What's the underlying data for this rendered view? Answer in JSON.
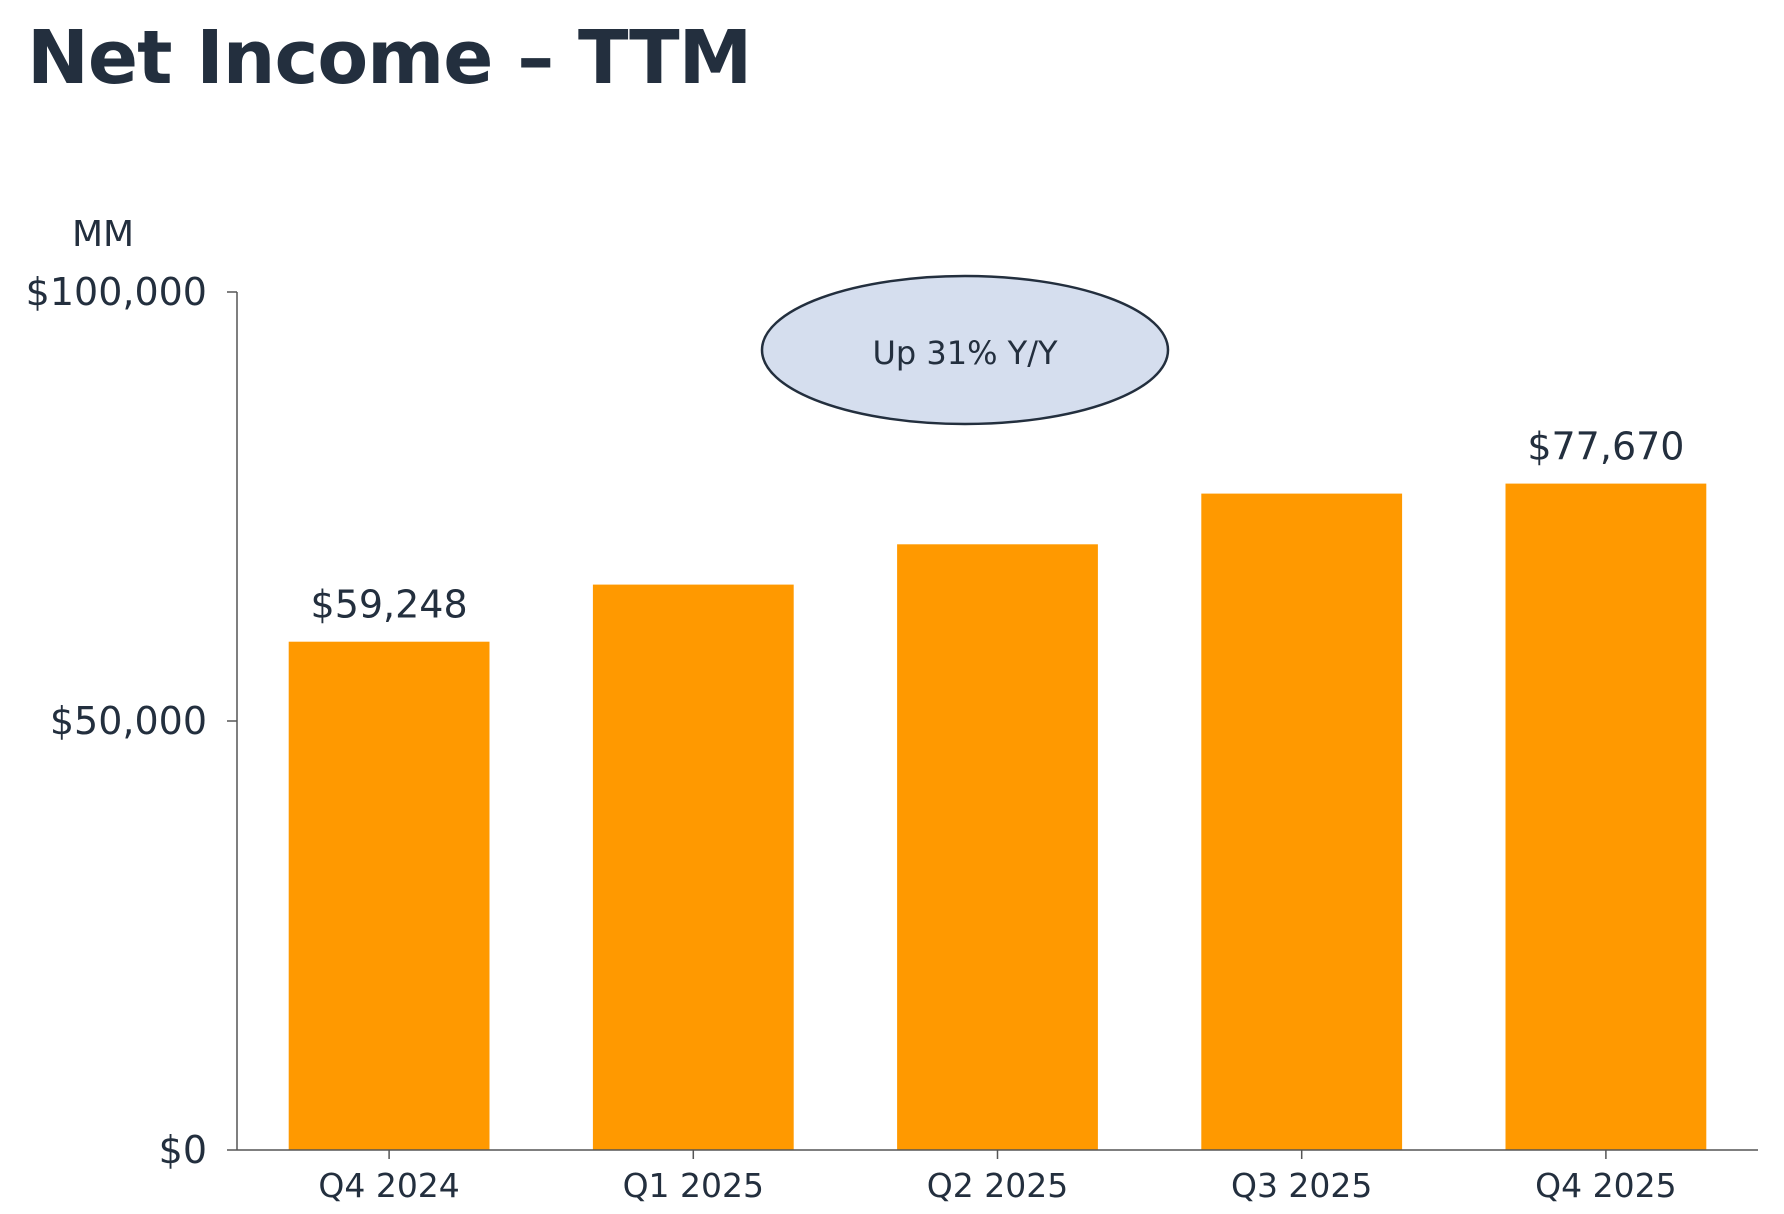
{
  "title": "Net Income – TTM",
  "chart_data": {
    "type": "bar",
    "title": "Net Income – TTM",
    "unit_label": "MM",
    "categories": [
      "Q4 2024",
      "Q1 2025",
      "Q2 2025",
      "Q3 2025",
      "Q4 2025"
    ],
    "values": [
      59248,
      65900,
      70600,
      76500,
      77670
    ],
    "data_labels": [
      "$59,248",
      "",
      "",
      "",
      "$77,670"
    ],
    "ylim": [
      0,
      100000
    ],
    "yticks": [
      0,
      50000,
      100000
    ],
    "ytick_labels": [
      "$0",
      "$50,000",
      "$100,000"
    ],
    "grid": false,
    "legend": "none",
    "bar_color": "#FF9900",
    "annotation": {
      "text": "Up 31% Y/Y",
      "fill": "#D5DEEE",
      "stroke": "#232F3E"
    }
  }
}
